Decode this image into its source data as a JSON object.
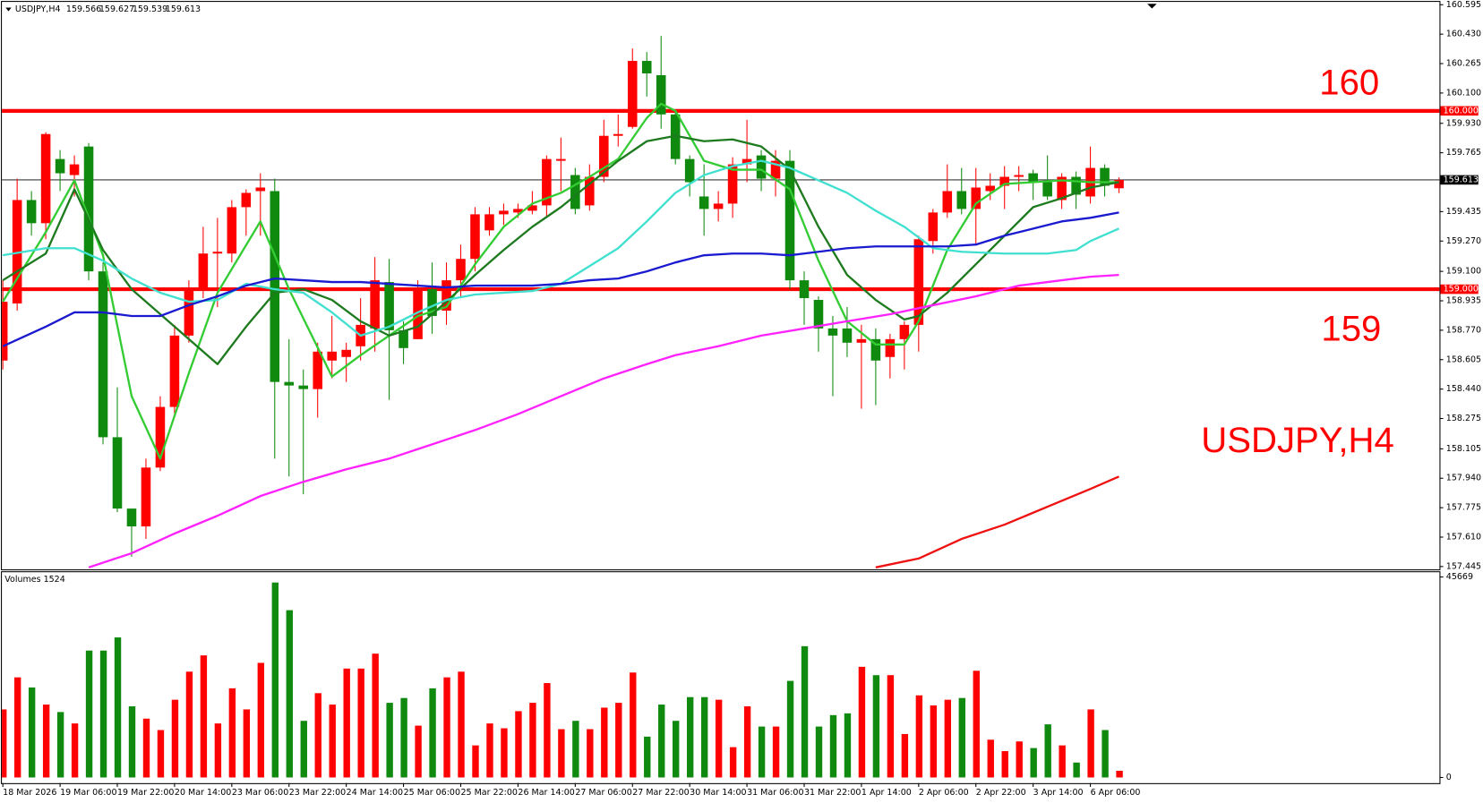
{
  "chart_data": [
    {
      "type": "candlestick",
      "title": "USDJPY,H4",
      "annotations": [
        "160",
        "159",
        "USDJPY,H4"
      ],
      "up_color": "#ff0000",
      "down_color": "#0f8a0f",
      "categories": [
        "18 Mar 2026",
        null,
        null,
        null,
        "19 Mar 06:00",
        null,
        null,
        null,
        "19 Mar 22:00",
        null,
        null,
        null,
        "20 Mar 14:00",
        null,
        null,
        null,
        "23 Mar 06:00",
        null,
        null,
        null,
        "23 Mar 22:00",
        null,
        null,
        null,
        "24 Mar 14:00",
        null,
        null,
        null,
        "25 Mar 06:00",
        null,
        null,
        null,
        "25 Mar 22:00",
        null,
        null,
        null,
        "26 Mar 14:00",
        null,
        null,
        null,
        "27 Mar 06:00",
        null,
        null,
        null,
        "27 Mar 22:00",
        null,
        null,
        null,
        "30 Mar 14:00",
        null,
        null,
        null,
        "31 Mar 06:00",
        null,
        null,
        null,
        "31 Mar 22:00",
        null,
        null,
        null,
        "1 Apr 14:00",
        null,
        null,
        null,
        "2 Apr 06:00",
        null,
        null,
        null,
        "2 Apr 22:00",
        null,
        null,
        null,
        "3 Apr 14:00",
        null,
        null,
        null,
        "6 Apr 06:00",
        null,
        null
      ],
      "open": [
        158.6,
        158.92,
        159.5,
        159.37,
        159.73,
        159.64,
        159.8,
        159.1,
        158.17,
        157.77,
        157.67,
        158.0,
        158.34,
        158.74,
        159.01,
        159.2,
        159.2,
        159.46,
        159.55,
        159.55,
        158.48,
        158.46,
        158.44,
        158.6,
        158.62,
        158.68,
        158.78,
        159.04,
        158.77,
        158.72,
        159.0,
        158.88,
        159.05,
        159.17,
        159.33,
        159.42,
        159.43,
        159.44,
        159.47,
        159.72,
        159.64,
        159.47,
        159.63,
        159.86,
        159.91,
        160.28,
        160.2,
        159.98,
        159.73,
        159.52,
        159.45,
        159.48,
        159.7,
        159.75,
        159.62,
        159.72,
        159.05,
        158.94,
        158.78,
        158.78,
        158.7,
        158.72,
        158.62,
        158.72,
        158.8,
        159.27,
        159.43,
        159.55,
        159.45,
        159.55,
        159.58,
        159.63,
        159.65,
        159.6,
        159.5,
        159.63,
        159.52,
        159.68,
        159.566
      ],
      "high": [
        159.05,
        159.62,
        159.55,
        159.88,
        159.78,
        159.75,
        159.82,
        159.15,
        158.45,
        157.77,
        158.05,
        158.4,
        158.8,
        159.05,
        159.35,
        159.4,
        159.5,
        159.56,
        159.65,
        159.62,
        158.72,
        158.55,
        158.7,
        158.85,
        158.7,
        158.95,
        159.18,
        159.17,
        158.82,
        159.05,
        159.15,
        159.15,
        159.25,
        159.46,
        159.46,
        159.48,
        159.48,
        159.55,
        159.75,
        159.85,
        159.68,
        159.7,
        159.95,
        159.98,
        160.35,
        160.33,
        160.42,
        160.0,
        159.75,
        159.7,
        159.55,
        159.74,
        159.95,
        159.78,
        159.78,
        159.78,
        159.1,
        158.96,
        158.85,
        158.9,
        158.8,
        158.78,
        158.75,
        158.82,
        159.3,
        159.45,
        159.7,
        159.68,
        159.68,
        159.65,
        159.69,
        159.69,
        159.67,
        159.75,
        159.65,
        159.66,
        159.8,
        159.7,
        159.627
      ],
      "low": [
        158.55,
        158.88,
        159.3,
        159.28,
        159.55,
        159.52,
        159.05,
        158.13,
        157.75,
        157.5,
        157.6,
        157.98,
        158.3,
        158.7,
        158.95,
        158.9,
        159.15,
        159.3,
        159.3,
        158.05,
        157.95,
        157.85,
        158.28,
        158.5,
        158.48,
        158.6,
        158.65,
        158.38,
        158.58,
        158.72,
        158.75,
        158.8,
        158.95,
        159.1,
        159.3,
        159.36,
        159.4,
        159.42,
        159.4,
        159.55,
        159.42,
        159.44,
        159.6,
        159.8,
        159.9,
        160.08,
        159.9,
        159.7,
        159.52,
        159.3,
        159.38,
        159.4,
        159.6,
        159.55,
        159.52,
        159.0,
        158.8,
        158.65,
        158.4,
        158.62,
        158.33,
        158.35,
        158.5,
        158.55,
        158.65,
        159.2,
        159.4,
        159.42,
        159.25,
        159.5,
        159.45,
        159.55,
        159.5,
        159.5,
        159.45,
        159.45,
        159.48,
        159.52,
        159.539
      ],
      "close": [
        158.93,
        159.5,
        159.37,
        159.87,
        159.65,
        159.7,
        159.1,
        158.17,
        157.77,
        157.67,
        158.0,
        158.34,
        158.74,
        159.01,
        159.2,
        159.21,
        159.46,
        159.54,
        159.57,
        158.48,
        158.46,
        158.44,
        158.65,
        158.65,
        158.66,
        158.8,
        159.05,
        158.77,
        158.67,
        159.0,
        158.85,
        159.05,
        159.17,
        159.42,
        159.42,
        159.44,
        159.45,
        159.47,
        159.73,
        159.73,
        159.45,
        159.63,
        159.86,
        159.87,
        160.28,
        160.21,
        159.98,
        159.73,
        159.6,
        159.45,
        159.48,
        159.7,
        159.73,
        159.62,
        159.72,
        159.05,
        158.95,
        158.78,
        158.74,
        158.7,
        158.72,
        158.6,
        158.72,
        158.8,
        159.28,
        159.43,
        159.55,
        159.45,
        159.57,
        159.58,
        159.63,
        159.64,
        159.6,
        159.52,
        159.63,
        159.53,
        159.68,
        159.58,
        159.613
      ],
      "series": [
        {
          "color": "#33cc33",
          "x": [
            0,
            3,
            5,
            7,
            9,
            11,
            13,
            15,
            18,
            20,
            23,
            25,
            27,
            29,
            31,
            33,
            35,
            37,
            39,
            41,
            43,
            45,
            46,
            47,
            49,
            51,
            53,
            55,
            57,
            59,
            61,
            63,
            64,
            66,
            68,
            70,
            72,
            74,
            76,
            78
          ],
          "values": [
            158.93,
            159.32,
            159.61,
            159.19,
            158.4,
            158.05,
            158.53,
            158.98,
            159.38,
            159.0,
            158.51,
            158.63,
            158.74,
            158.85,
            158.9,
            159.14,
            159.35,
            159.48,
            159.54,
            159.63,
            159.73,
            159.96,
            160.04,
            160.0,
            159.72,
            159.67,
            159.67,
            159.56,
            159.16,
            158.82,
            158.69,
            158.69,
            158.82,
            159.22,
            159.48,
            159.59,
            159.6,
            159.61,
            159.6,
            159.6
          ]
        },
        {
          "color": "#1e7a1e",
          "x": [
            0,
            3,
            5,
            7,
            9,
            12,
            15,
            17,
            19,
            21,
            23,
            25,
            27,
            29,
            31,
            33,
            35,
            37,
            39,
            41,
            43,
            45,
            47,
            49,
            51,
            53,
            55,
            57,
            59,
            61,
            63,
            64,
            66,
            68,
            70,
            72,
            74,
            76,
            78
          ],
          "values": [
            159.05,
            159.2,
            159.56,
            159.22,
            159.0,
            158.79,
            158.58,
            158.79,
            158.98,
            159.0,
            158.94,
            158.82,
            158.74,
            158.79,
            158.93,
            159.08,
            159.22,
            159.35,
            159.46,
            159.59,
            159.72,
            159.83,
            159.86,
            159.83,
            159.84,
            159.8,
            159.67,
            159.35,
            159.08,
            158.94,
            158.83,
            158.85,
            158.98,
            159.14,
            159.3,
            159.46,
            159.51,
            159.57,
            159.6
          ]
        },
        {
          "color": "#40e0d0",
          "x": [
            0,
            3,
            5,
            7,
            9,
            11,
            13,
            15,
            17,
            19,
            21,
            23,
            25,
            27,
            29,
            31,
            33,
            35,
            37,
            39,
            41,
            43,
            45,
            47,
            49,
            51,
            53,
            55,
            57,
            59,
            61,
            63,
            65,
            67,
            70,
            73,
            75,
            76,
            78
          ],
          "values": [
            159.19,
            159.23,
            159.23,
            159.16,
            159.06,
            158.98,
            158.93,
            158.94,
            159.03,
            159.0,
            158.98,
            158.87,
            158.74,
            158.79,
            158.87,
            158.94,
            158.97,
            158.98,
            158.99,
            159.03,
            159.13,
            159.23,
            159.38,
            159.54,
            159.64,
            159.69,
            159.72,
            159.68,
            159.61,
            159.54,
            159.44,
            159.35,
            159.23,
            159.21,
            159.2,
            159.2,
            159.22,
            159.27,
            159.34
          ]
        },
        {
          "color": "#1a1ad0",
          "x": [
            0,
            3,
            5,
            7,
            9,
            11,
            13,
            15,
            17,
            19,
            21,
            23,
            25,
            27,
            29,
            31,
            33,
            35,
            37,
            39,
            41,
            43,
            45,
            47,
            49,
            51,
            53,
            55,
            57,
            59,
            61,
            63,
            66,
            68,
            70,
            72,
            74,
            76,
            78
          ],
          "values": [
            158.68,
            158.79,
            158.87,
            158.87,
            158.85,
            158.85,
            158.91,
            158.96,
            159.02,
            159.06,
            159.05,
            159.04,
            159.04,
            159.03,
            159.02,
            159.01,
            159.02,
            159.02,
            159.02,
            159.03,
            159.05,
            159.06,
            159.1,
            159.15,
            159.19,
            159.2,
            159.2,
            159.19,
            159.21,
            159.23,
            159.24,
            159.24,
            159.24,
            159.25,
            159.3,
            159.34,
            159.38,
            159.4,
            159.43
          ]
        },
        {
          "color": "#ff22ff",
          "x": [
            6,
            9,
            12,
            15,
            18,
            21,
            24,
            27,
            30,
            33,
            36,
            39,
            42,
            45,
            47,
            50,
            53,
            56,
            59,
            62,
            65,
            68,
            71,
            74,
            76,
            78
          ],
          "values": [
            157.44,
            157.52,
            157.63,
            157.73,
            157.84,
            157.92,
            157.99,
            158.05,
            158.13,
            158.21,
            158.3,
            158.4,
            158.5,
            158.58,
            158.63,
            158.68,
            158.74,
            158.78,
            158.82,
            158.86,
            158.91,
            158.96,
            159.02,
            159.05,
            159.07,
            159.08
          ]
        },
        {
          "color": "#ee1111",
          "x": [
            61,
            64,
            67,
            70,
            73,
            76,
            78
          ],
          "values": [
            157.44,
            157.49,
            157.6,
            157.68,
            157.78,
            157.88,
            157.95
          ]
        }
      ],
      "hlines": [
        {
          "value": 160,
          "label": "160.000",
          "color": "#ff0000"
        },
        {
          "value": 159,
          "label": "159.000",
          "color": "#ff0000"
        }
      ],
      "ylim": [
        157.445,
        160.595
      ],
      "yticks": [
        160.595,
        {
          "value": 160.43,
          "label": "160.430"
        },
        160.265,
        {
          "value": 160.1,
          "label": "160.100"
        },
        {
          "value": 159.93,
          "label": "159.930"
        },
        159.765,
        159.435,
        {
          "value": 159.27,
          "label": "159.270"
        },
        {
          "value": 159.1,
          "label": "159.100"
        },
        158.935,
        {
          "value": 158.77,
          "label": "158.770"
        },
        158.605,
        {
          "value": 158.44,
          "label": "158.440"
        },
        158.275,
        158.105,
        {
          "value": 157.94,
          "label": "157.940"
        },
        157.775,
        {
          "value": 157.61,
          "label": "157.610"
        },
        157.445
      ]
    },
    {
      "type": "bar",
      "title": "Volumes 1524",
      "values": [
        15500,
        22800,
        20500,
        16600,
        14900,
        12300,
        28900,
        28900,
        31900,
        16200,
        13400,
        10800,
        17700,
        24100,
        27800,
        12300,
        20300,
        15500,
        26100,
        44400,
        38100,
        12900,
        19200,
        16600,
        24800,
        24800,
        28200,
        17000,
        18100,
        11800,
        20300,
        22800,
        24100,
        7300,
        12300,
        11200,
        15100,
        17000,
        21500,
        11000,
        12900,
        11000,
        15900,
        17000,
        23900,
        9300,
        16600,
        12900,
        18300,
        18300,
        17700,
        6900,
        16200,
        11600,
        11600,
        22000,
        29900,
        11600,
        14200,
        14600,
        25200,
        23300,
        23300,
        9900,
        18700,
        16400,
        17700,
        18100,
        24300,
        8600,
        6000,
        8200,
        6700,
        12100,
        7300,
        3400,
        15500,
        10800,
        1524
      ],
      "ylim": [
        0,
        45669
      ],
      "yticks": [
        45669,
        0
      ]
    }
  ]
}
